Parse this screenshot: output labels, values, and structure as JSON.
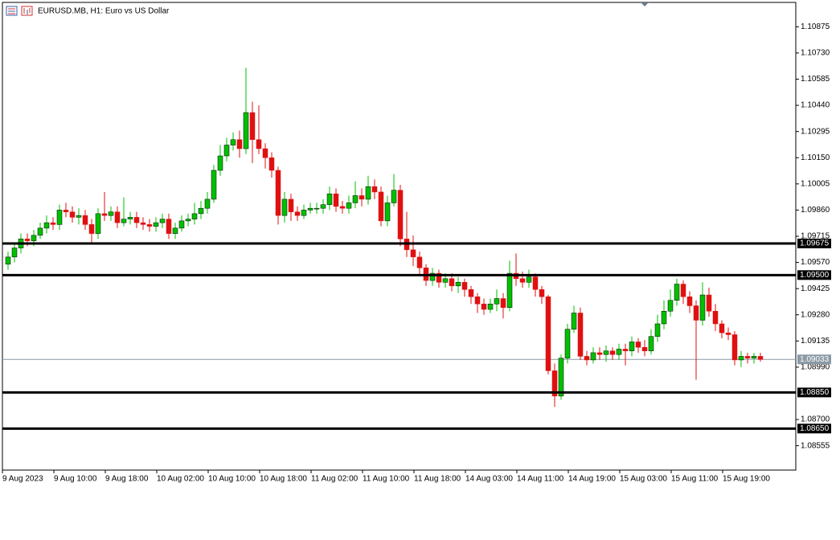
{
  "chart_data": {
    "type": "candlestick",
    "title": "EURUSD.MB, H1:  Euro vs US Dollar",
    "categories": [
      "9 Aug 2023",
      null,
      null,
      null,
      null,
      null,
      null,
      null,
      "9 Aug 10:00",
      null,
      null,
      null,
      null,
      null,
      null,
      null,
      "9 Aug 18:00",
      null,
      null,
      null,
      null,
      null,
      null,
      null,
      "10 Aug 02:00",
      null,
      null,
      null,
      null,
      null,
      null,
      null,
      "10 Aug 10:00",
      null,
      null,
      null,
      null,
      null,
      null,
      null,
      "10 Aug 18:00",
      null,
      null,
      null,
      null,
      null,
      null,
      null,
      "11 Aug 02:00",
      null,
      null,
      null,
      null,
      null,
      null,
      null,
      "11 Aug 10:00",
      null,
      null,
      null,
      null,
      null,
      null,
      null,
      "11 Aug 18:00",
      null,
      null,
      null,
      null,
      null,
      null,
      null,
      "14 Aug 03:00",
      null,
      null,
      null,
      null,
      null,
      null,
      null,
      "14 Aug 11:00",
      null,
      null,
      null,
      null,
      null,
      null,
      null,
      "14 Aug 19:00",
      null,
      null,
      null,
      null,
      null,
      null,
      null,
      "15 Aug 03:00",
      null,
      null,
      null,
      null,
      null,
      null,
      null,
      "15 Aug 11:00",
      null,
      null,
      null,
      null,
      null,
      null,
      null,
      "15 Aug 19:00",
      null,
      null,
      null,
      null,
      null
    ],
    "open": [
      1.0956,
      1.096,
      1.0965,
      1.097,
      1.0969,
      1.0972,
      1.0976,
      1.0979,
      1.0978,
      1.0986,
      1.0985,
      1.0982,
      1.0983,
      1.0978,
      1.0973,
      1.0984,
      1.0983,
      1.0985,
      1.0979,
      1.0981,
      1.0982,
      1.0979,
      1.0978,
      1.0977,
      1.0979,
      1.0981,
      1.0973,
      1.0976,
      1.098,
      1.0981,
      1.0984,
      1.0987,
      1.0992,
      1.1008,
      1.1016,
      1.1022,
      1.1025,
      1.102,
      1.104,
      1.1025,
      1.102,
      1.1015,
      1.1008,
      1.0983,
      1.0992,
      1.0985,
      1.0983,
      1.0986,
      1.0987,
      1.0987,
      1.0989,
      1.0995,
      1.0988,
      1.0987,
      1.099,
      1.0994,
      1.0992,
      1.0999,
      1.0996,
      1.098,
      1.099,
      1.0997,
      1.097,
      1.0964,
      1.096,
      1.0954,
      1.0947,
      1.0951,
      1.0946,
      1.0948,
      1.0944,
      1.0946,
      1.0942,
      1.0938,
      1.0934,
      1.0931,
      1.0934,
      1.0937,
      1.0932,
      1.0951,
      1.0948,
      1.0946,
      1.0949,
      1.0942,
      1.0938,
      1.0897,
      1.0883,
      1.0904,
      1.092,
      1.0929,
      1.0905,
      1.0903,
      1.0907,
      1.0906,
      1.0908,
      1.0906,
      1.0909,
      1.0908,
      1.0913,
      1.091,
      1.0908,
      1.0916,
      1.0923,
      1.093,
      1.0936,
      1.0945,
      1.0938,
      1.0933,
      1.0925,
      1.0939,
      1.093,
      1.0923,
      1.0918,
      1.0917,
      1.0903,
      1.0905,
      1.0904,
      1.0905
    ],
    "high": [
      1.0963,
      1.0968,
      1.0973,
      1.0973,
      1.0975,
      1.0979,
      1.0983,
      1.0982,
      1.0989,
      1.099,
      1.0988,
      1.0987,
      1.0986,
      1.0981,
      1.0987,
      1.0996,
      1.0988,
      1.0988,
      1.0993,
      1.0985,
      1.0985,
      1.0982,
      1.0981,
      1.0982,
      1.0984,
      1.0984,
      1.0979,
      1.0983,
      1.0984,
      1.099,
      1.0991,
      1.0996,
      1.1011,
      1.1022,
      1.1026,
      1.1029,
      1.103,
      1.10648,
      1.1046,
      1.1044,
      1.1023,
      1.1018,
      1.101,
      1.0996,
      1.0995,
      1.0988,
      1.0989,
      1.099,
      1.099,
      1.0992,
      1.0999,
      1.0998,
      1.0991,
      1.0994,
      1.1002,
      1.0998,
      1.1005,
      1.1003,
      1.0999,
      1.0994,
      1.1006,
      1.1,
      1.0985,
      1.0972,
      1.0963,
      1.0956,
      1.0954,
      1.0953,
      1.0951,
      1.0951,
      1.0949,
      1.0948,
      1.0944,
      1.094,
      1.0937,
      1.0937,
      1.0942,
      1.094,
      1.0958,
      1.0962,
      1.0952,
      1.0953,
      1.0951,
      1.0944,
      1.0939,
      1.0901,
      1.0906,
      1.0923,
      1.0933,
      1.0932,
      1.0908,
      1.091,
      1.091,
      1.0911,
      1.091,
      1.0912,
      1.0912,
      1.0916,
      1.0915,
      1.0914,
      1.092,
      1.0928,
      1.0936,
      1.0942,
      1.0948,
      1.0947,
      1.0941,
      1.0936,
      1.0946,
      1.0943,
      1.0934,
      1.0925,
      1.0921,
      1.0919,
      1.0908,
      1.0907,
      1.0907,
      1.0907
    ],
    "low": [
      1.0953,
      1.0957,
      1.0962,
      1.0966,
      1.0966,
      1.097,
      1.0973,
      1.0975,
      1.0975,
      1.0982,
      1.0979,
      1.0978,
      1.0975,
      1.0968,
      1.097,
      1.098,
      1.098,
      1.0976,
      1.0977,
      1.0978,
      1.0976,
      1.0975,
      1.0974,
      1.0974,
      1.0976,
      1.097,
      1.097,
      1.0974,
      1.0977,
      1.0978,
      1.0981,
      1.0984,
      1.099,
      1.1005,
      1.1013,
      1.1019,
      1.1015,
      1.1017,
      1.1012,
      1.1017,
      1.1009,
      1.1004,
      1.0978,
      1.0979,
      1.098,
      1.098,
      1.0981,
      1.0984,
      1.0984,
      1.0984,
      1.0986,
      1.0985,
      1.0984,
      1.0984,
      1.0987,
      1.0988,
      1.0989,
      1.0992,
      1.0977,
      1.0977,
      1.0988,
      1.0966,
      1.096,
      1.0955,
      1.095,
      1.0944,
      1.0944,
      1.0943,
      1.0943,
      1.0941,
      1.094,
      1.0938,
      1.0934,
      1.0929,
      1.0928,
      1.0929,
      1.093,
      1.0926,
      1.093,
      1.0944,
      1.0943,
      1.0943,
      1.0938,
      1.0934,
      1.0895,
      1.0877,
      1.0881,
      1.0901,
      1.0918,
      1.0903,
      1.09,
      1.0901,
      1.0903,
      1.0902,
      1.0903,
      1.0903,
      1.09,
      1.0905,
      1.0907,
      1.0905,
      1.0906,
      1.0913,
      1.092,
      1.0927,
      1.0933,
      1.0934,
      1.0929,
      1.0892,
      1.0922,
      1.0927,
      1.0919,
      1.0915,
      1.0914,
      1.09,
      1.0899,
      1.0901,
      1.0901,
      1.0902
    ],
    "close": [
      1.096,
      1.0965,
      1.097,
      1.0969,
      1.0972,
      1.0976,
      1.0979,
      1.0978,
      1.0986,
      1.0985,
      1.0982,
      1.0983,
      1.0978,
      1.0973,
      1.0984,
      1.0983,
      1.0985,
      1.0979,
      1.0981,
      1.0982,
      1.0979,
      1.0978,
      1.0977,
      1.0979,
      1.0981,
      1.0973,
      1.0976,
      1.098,
      1.0981,
      1.0984,
      1.0987,
      1.0992,
      1.1008,
      1.1016,
      1.1022,
      1.1025,
      1.102,
      1.104,
      1.1025,
      1.102,
      1.1015,
      1.1008,
      1.0983,
      1.0992,
      1.0985,
      1.0983,
      1.0986,
      1.0987,
      1.0987,
      1.0989,
      1.0995,
      1.0988,
      1.0987,
      1.099,
      1.0994,
      1.0992,
      1.0999,
      1.0996,
      1.098,
      1.099,
      1.0997,
      1.097,
      1.0964,
      1.096,
      1.0954,
      1.0947,
      1.0951,
      1.0946,
      1.0948,
      1.0944,
      1.0946,
      1.0942,
      1.0938,
      1.0934,
      1.0931,
      1.0934,
      1.0937,
      1.0932,
      1.0951,
      1.0948,
      1.0946,
      1.0949,
      1.0942,
      1.0938,
      1.0897,
      1.0883,
      1.0904,
      1.092,
      1.0929,
      1.0905,
      1.0903,
      1.0907,
      1.0906,
      1.0908,
      1.0906,
      1.0909,
      1.0908,
      1.0913,
      1.091,
      1.0908,
      1.0916,
      1.0923,
      1.093,
      1.0936,
      1.0945,
      1.0938,
      1.0933,
      1.0925,
      1.0939,
      1.093,
      1.0923,
      1.0918,
      1.0917,
      1.0903,
      1.0905,
      1.0904,
      1.0905,
      1.09033
    ],
    "up_color": "#00c000",
    "down_color": "#e01010",
    "ylim": [
      1.0842,
      1.1101
    ],
    "yticks": [
      1.10875,
      {
        "value": 1.1073,
        "label": "1.10730"
      },
      1.10585,
      {
        "value": 1.1044,
        "label": "1.10440"
      },
      1.10295,
      {
        "value": 1.1015,
        "label": "1.10150"
      },
      1.10005,
      {
        "value": 1.0986,
        "label": "1.09860"
      },
      1.09715,
      {
        "value": 1.0957,
        "label": "1.09570"
      },
      1.09425,
      {
        "value": 1.0928,
        "label": "1.09280"
      },
      1.09135,
      {
        "value": 1.0899,
        "label": "1.08990"
      },
      {
        "value": 1.087,
        "label": "1.08700"
      },
      1.08555
    ],
    "levels": [
      1.09675,
      {
        "value": 1.095,
        "label": "1.09500"
      },
      {
        "value": 1.0885,
        "label": "1.08850"
      },
      {
        "value": 1.0865,
        "label": "1.08650"
      }
    ],
    "last_price": 1.09033,
    "grid": false
  }
}
